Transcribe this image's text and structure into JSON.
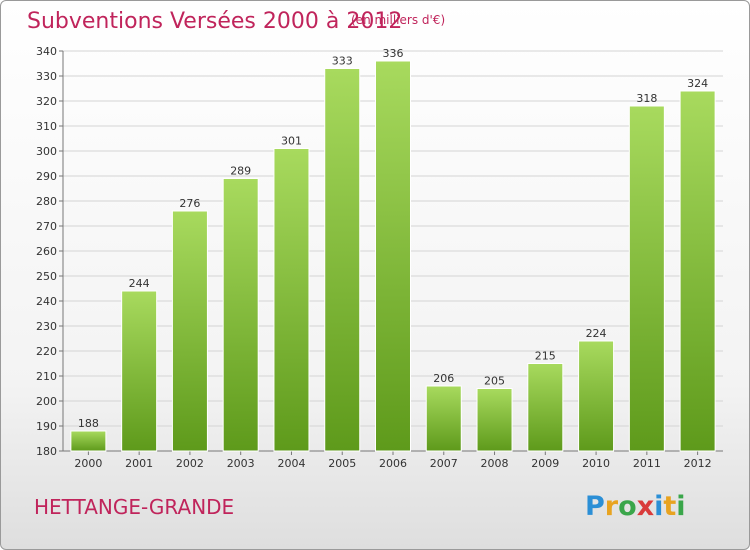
{
  "header": {
    "title": "Subventions Versées 2000 à 2012",
    "subtitle": "(en milliers d'€)"
  },
  "location": "HETTANGE-GRANDE",
  "logo_text": "Proxiti",
  "colors": {
    "title": "#c0245b",
    "bar_light": "#a6d85c",
    "bar_dark": "#5f9a1c",
    "gridline": "#d4d4d4"
  },
  "chart_data": {
    "type": "bar",
    "title": "Subventions Versées 2000 à 2012",
    "subtitle": "(en milliers d'€)",
    "xlabel": "",
    "ylabel": "",
    "categories": [
      "2000",
      "2001",
      "2002",
      "2003",
      "2004",
      "2005",
      "2006",
      "2007",
      "2008",
      "2009",
      "2010",
      "2011",
      "2012"
    ],
    "values": [
      188,
      244,
      276,
      289,
      301,
      333,
      336,
      206,
      205,
      215,
      224,
      318,
      324
    ],
    "ylim": [
      180,
      340
    ],
    "ytick_step": 10,
    "grid": true,
    "legend": "none"
  }
}
